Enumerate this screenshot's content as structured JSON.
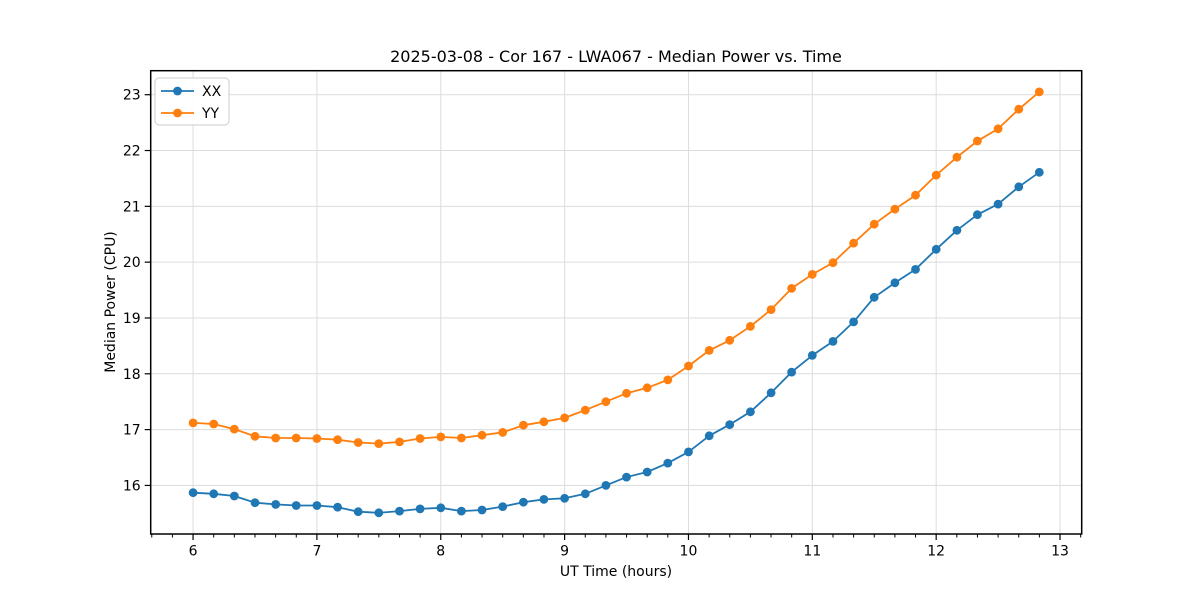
{
  "chart_data": {
    "type": "line",
    "title": "2025-03-08 - Cor 167 - LWA067 - Median Power vs. Time",
    "xlabel": "UT Time (hours)",
    "ylabel": "Median Power (CPU)",
    "xlim": [
      5.658,
      13.175
    ],
    "ylim": [
      15.13,
      23.43
    ],
    "xticks": [
      6,
      7,
      8,
      9,
      10,
      11,
      12,
      13
    ],
    "yticks": [
      16,
      17,
      18,
      19,
      20,
      21,
      22,
      23
    ],
    "x_minor_step": 0.166667,
    "grid": true,
    "legend_position": "upper left",
    "marker": "circle",
    "x": [
      6.0,
      6.167,
      6.333,
      6.5,
      6.667,
      6.833,
      7.0,
      7.167,
      7.333,
      7.5,
      7.667,
      7.833,
      8.0,
      8.167,
      8.333,
      8.5,
      8.667,
      8.833,
      9.0,
      9.167,
      9.333,
      9.5,
      9.667,
      9.833,
      10.0,
      10.167,
      10.333,
      10.5,
      10.667,
      10.833,
      11.0,
      11.167,
      11.333,
      11.5,
      11.667,
      11.833,
      12.0,
      12.167,
      12.333,
      12.5,
      12.667,
      12.833
    ],
    "series": [
      {
        "name": "XX",
        "color": "#1f77b4",
        "values": [
          15.87,
          15.85,
          15.81,
          15.69,
          15.66,
          15.64,
          15.64,
          15.61,
          15.53,
          15.51,
          15.54,
          15.58,
          15.6,
          15.54,
          15.56,
          15.62,
          15.7,
          15.75,
          15.77,
          15.85,
          16.0,
          16.15,
          16.24,
          16.4,
          16.6,
          16.89,
          17.09,
          17.32,
          17.66,
          18.03,
          18.33,
          18.58,
          18.93,
          19.37,
          19.63,
          19.87,
          20.23,
          20.57,
          20.85,
          21.04,
          21.35,
          21.61
        ]
      },
      {
        "name": "YY",
        "color": "#ff7f0e",
        "values": [
          17.12,
          17.1,
          17.01,
          16.88,
          16.85,
          16.85,
          16.84,
          16.82,
          16.77,
          16.75,
          16.78,
          16.84,
          16.87,
          16.85,
          16.9,
          16.95,
          17.08,
          17.14,
          17.21,
          17.35,
          17.5,
          17.65,
          17.75,
          17.89,
          18.14,
          18.42,
          18.6,
          18.85,
          19.15,
          19.53,
          19.78,
          19.99,
          20.34,
          20.68,
          20.95,
          21.2,
          21.56,
          21.88,
          22.17,
          22.39,
          22.74,
          23.05
        ]
      }
    ],
    "style_colors": {
      "grid": "#dcdcdc",
      "spine": "#000000",
      "legend_border": "#cccccc",
      "background": "#ffffff"
    }
  }
}
